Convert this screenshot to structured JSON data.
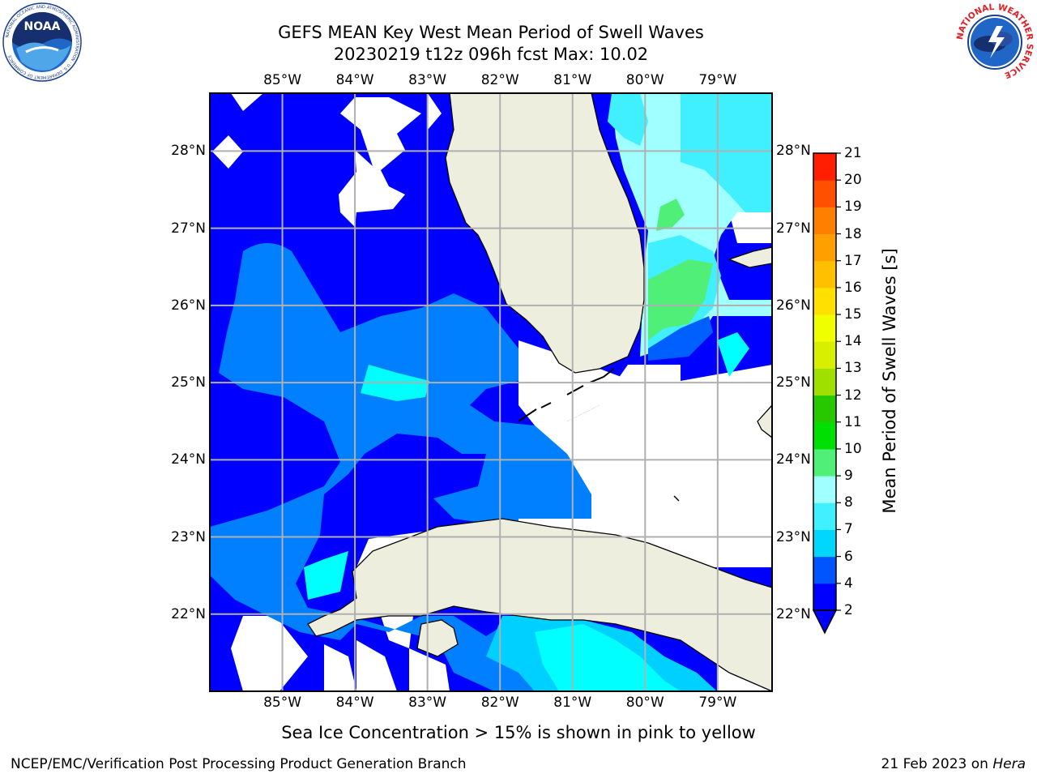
{
  "title": {
    "line1": "GEFS MEAN Key West Mean Period of Swell Waves",
    "line2": "20230219 t12z 096h fcst   Max: 10.02"
  },
  "axes": {
    "lon_ticks": [
      "85°W",
      "84°W",
      "83°W",
      "82°W",
      "81°W",
      "80°W",
      "79°W"
    ],
    "lat_ticks": [
      "28°N",
      "27°N",
      "26°N",
      "25°N",
      "24°N",
      "23°N",
      "22°N"
    ],
    "lon_range": [
      -86.0,
      -78.25
    ],
    "lat_range": [
      21.0,
      28.75
    ],
    "grid": true
  },
  "colorbar": {
    "label": "Mean Period of Swell Waves [s]",
    "ticks": [
      "2",
      "4",
      "6",
      "7",
      "8",
      "9",
      "10",
      "11",
      "12",
      "13",
      "14",
      "15",
      "16",
      "17",
      "18",
      "19",
      "20",
      "21"
    ],
    "colors": [
      "#0000ff",
      "#0055ff",
      "#00d7ff",
      "#40f0ff",
      "#a0ffff",
      "#50f078",
      "#00e000",
      "#28c800",
      "#a0e000",
      "#d8f000",
      "#f0ff00",
      "#ffe000",
      "#ffc000",
      "#ffa000",
      "#ff8000",
      "#ff5000",
      "#ff1e00"
    ]
  },
  "colors": {
    "land": "#eeeedf",
    "ocean_low": "#0000ff",
    "ocean_mid": "#0080ff",
    "ocean_cyan": "#00ffff",
    "ocean_light": "#a0ffff",
    "ocean_green": "#50f078",
    "grid": "#b0b0b0"
  },
  "logos": {
    "noaa": {
      "text": "NOAA",
      "ring_text": "NATIONAL OCEANIC AND ATMOSPHERIC ADMINISTRATION · U.S. DEPARTMENT OF COMMERCE"
    },
    "nws": {
      "ring_text": "NATIONAL WEATHER SERVICE"
    }
  },
  "caption": "Sea Ice Concentration > 15% is shown in pink to yellow",
  "footer": {
    "left": "NCEP/EMC/Verification Post Processing Product Generation Branch",
    "right_prefix": "21 Feb 2023 on ",
    "right_italic": "Hera"
  }
}
